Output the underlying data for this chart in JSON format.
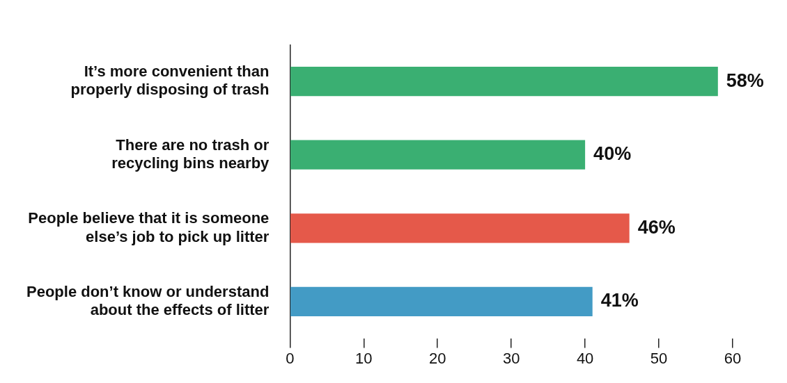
{
  "chart_data": {
    "type": "bar",
    "orientation": "horizontal",
    "categories": [
      "It’s more convenient than properly disposing of trash",
      "There are no trash or recycling bins nearby",
      "People believe that it is someone else’s job to pick up litter",
      "People don’t know or understand about the effects of litter"
    ],
    "values": [
      58,
      40,
      46,
      41
    ],
    "colors": [
      "#3aaf72",
      "#3aaf72",
      "#e5594a",
      "#439bc5"
    ],
    "value_labels": [
      "58%",
      "40%",
      "46%",
      "41%"
    ],
    "xlim": [
      0,
      60
    ],
    "xticks": [
      0,
      10,
      20,
      30,
      40,
      50,
      60
    ],
    "grid": false,
    "legend": false
  }
}
